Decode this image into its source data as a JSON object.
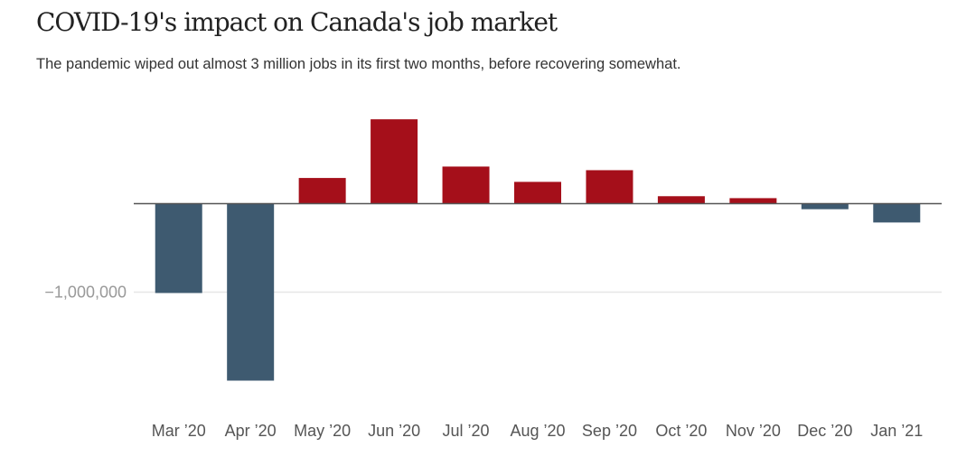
{
  "header": {
    "title": "COVID-19's impact on Canada's job market",
    "subtitle": "The pandemic wiped out almost 3 million jobs in its first two months, before recovering somewhat."
  },
  "colors": {
    "positive": "#a50f1a",
    "negative": "#3e5a70",
    "axis": "#555555",
    "grid": "#e6e6e6"
  },
  "chart_data": {
    "type": "bar",
    "title": "COVID-19's impact on Canada's job market",
    "subtitle": "The pandemic wiped out almost 3 million jobs in its first two months, before recovering somewhat.",
    "categories": [
      "Mar ’20",
      "Apr ’20",
      "May ’20",
      "Jun ’20",
      "Jul ’20",
      "Aug ’20",
      "Sep ’20",
      "Oct ’20",
      "Nov ’20",
      "Dec ’20",
      "Jan ’21"
    ],
    "values": [
      -1010000,
      -2000000,
      290000,
      953000,
      419000,
      246000,
      378000,
      84000,
      62000,
      -63000,
      -213000
    ],
    "ylim": [
      -2050000,
      1000000
    ],
    "yticks": [
      -1000000
    ],
    "ytick_labels": [
      "−1,000,000"
    ],
    "xlabel": "",
    "ylabel": "",
    "grid": true
  }
}
